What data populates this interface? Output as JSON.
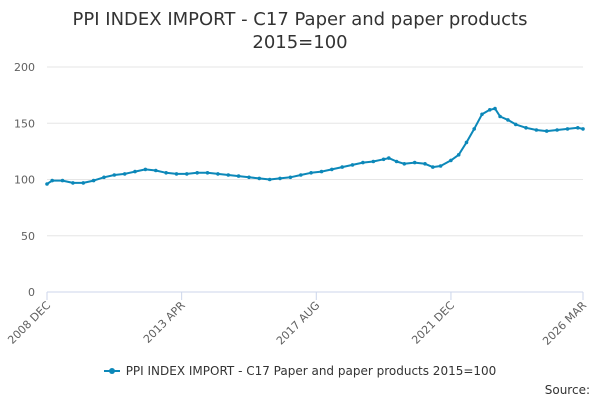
{
  "title_line1": "PPI INDEX IMPORT - C17 Paper and paper products",
  "title_line2": "2015=100",
  "source_label": "Source:",
  "chart_data": {
    "type": "line",
    "title": "PPI INDEX IMPORT - C17 Paper and paper products 2015=100",
    "xlabel": "",
    "ylabel": "",
    "ylim": [
      0,
      200
    ],
    "yticks": [
      0,
      50,
      100,
      150,
      200
    ],
    "grid": true,
    "legend_placement": "bottom",
    "x_ticks": [
      {
        "date": "2008-12",
        "label": "2008 DEC"
      },
      {
        "date": "2013-04",
        "label": "2013 APR"
      },
      {
        "date": "2017-08",
        "label": "2017 AUG"
      },
      {
        "date": "2021-12",
        "label": "2021 DEC"
      },
      {
        "date": "2026-03",
        "label": "2026 MAR"
      }
    ],
    "x_start": "2008-12",
    "x_end": "2026-03",
    "series": [
      {
        "name": "PPI INDEX IMPORT - C17 Paper and paper products 2015=100",
        "color": "#0c88b9",
        "points": [
          [
            "2008-12",
            96
          ],
          [
            "2009-02",
            99
          ],
          [
            "2009-06",
            99
          ],
          [
            "2009-10",
            97
          ],
          [
            "2010-02",
            97
          ],
          [
            "2010-06",
            99
          ],
          [
            "2010-10",
            102
          ],
          [
            "2011-02",
            104
          ],
          [
            "2011-06",
            105
          ],
          [
            "2011-10",
            107
          ],
          [
            "2012-02",
            109
          ],
          [
            "2012-06",
            108
          ],
          [
            "2012-10",
            106
          ],
          [
            "2013-02",
            105
          ],
          [
            "2013-06",
            105
          ],
          [
            "2013-10",
            106
          ],
          [
            "2014-02",
            106
          ],
          [
            "2014-06",
            105
          ],
          [
            "2014-10",
            104
          ],
          [
            "2015-02",
            103
          ],
          [
            "2015-06",
            102
          ],
          [
            "2015-10",
            101
          ],
          [
            "2016-02",
            100
          ],
          [
            "2016-06",
            101
          ],
          [
            "2016-10",
            102
          ],
          [
            "2017-02",
            104
          ],
          [
            "2017-06",
            106
          ],
          [
            "2017-10",
            107
          ],
          [
            "2018-02",
            109
          ],
          [
            "2018-06",
            111
          ],
          [
            "2018-10",
            113
          ],
          [
            "2019-02",
            115
          ],
          [
            "2019-06",
            116
          ],
          [
            "2019-10",
            118
          ],
          [
            "2019-12",
            119
          ],
          [
            "2020-03",
            116
          ],
          [
            "2020-06",
            114
          ],
          [
            "2020-10",
            115
          ],
          [
            "2021-02",
            114
          ],
          [
            "2021-05",
            111
          ],
          [
            "2021-08",
            112
          ],
          [
            "2021-12",
            117
          ],
          [
            "2022-03",
            122
          ],
          [
            "2022-06",
            133
          ],
          [
            "2022-09",
            145
          ],
          [
            "2022-12",
            158
          ],
          [
            "2023-03",
            162
          ],
          [
            "2023-05",
            163
          ],
          [
            "2023-07",
            156
          ],
          [
            "2023-10",
            153
          ],
          [
            "2024-01",
            149
          ],
          [
            "2024-05",
            146
          ],
          [
            "2024-09",
            144
          ],
          [
            "2025-01",
            143
          ],
          [
            "2025-05",
            144
          ],
          [
            "2025-09",
            145
          ],
          [
            "2026-01",
            146
          ],
          [
            "2026-03",
            145
          ]
        ]
      }
    ]
  }
}
